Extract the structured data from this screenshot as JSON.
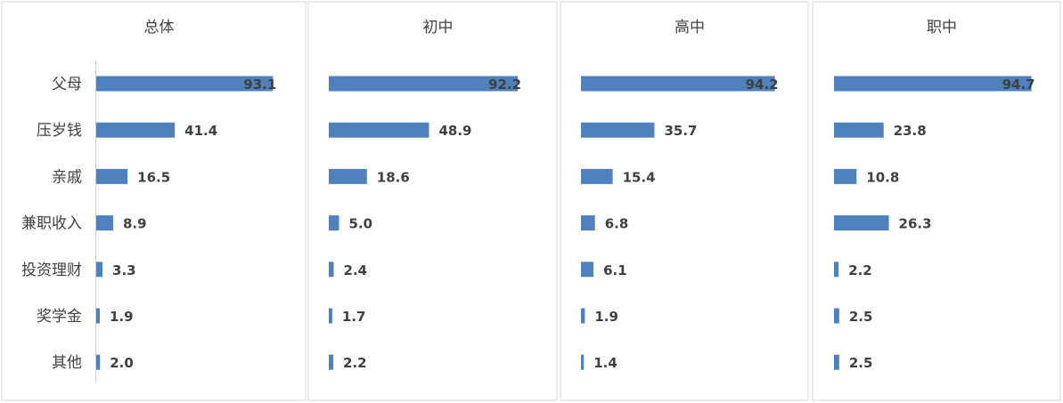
{
  "bar_color": "#4F81BD",
  "chart_data": [
    {
      "type": "bar",
      "orientation": "horizontal",
      "title": "总体",
      "categories": [
        "父母",
        "压岁钱",
        "亲戚",
        "兼职收入",
        "投资理财",
        "奖学金",
        "其他"
      ],
      "values": [
        93.1,
        41.4,
        16.5,
        8.9,
        3.3,
        1.9,
        2.0
      ],
      "value_labels": [
        "93.1",
        "41.4",
        "16.5",
        "8.9",
        "3.3",
        "1.9",
        "2.0"
      ],
      "xlim": [
        0,
        100
      ]
    },
    {
      "type": "bar",
      "orientation": "horizontal",
      "title": "初中",
      "categories": [
        "父母",
        "压岁钱",
        "亲戚",
        "兼职收入",
        "投资理财",
        "奖学金",
        "其他"
      ],
      "values": [
        92.2,
        48.9,
        18.6,
        5.0,
        2.4,
        1.7,
        2.2
      ],
      "value_labels": [
        "92.2",
        "48.9",
        "18.6",
        "5.0",
        "2.4",
        "1.7",
        "2.2"
      ],
      "xlim": [
        0,
        100
      ]
    },
    {
      "type": "bar",
      "orientation": "horizontal",
      "title": "高中",
      "categories": [
        "父母",
        "压岁钱",
        "亲戚",
        "兼职收入",
        "投资理财",
        "奖学金",
        "其他"
      ],
      "values": [
        94.2,
        35.7,
        15.4,
        6.8,
        6.1,
        1.9,
        1.4
      ],
      "value_labels": [
        "94.2",
        "35.7",
        "15.4",
        "6.8",
        "6.1",
        "1.9",
        "1.4"
      ],
      "xlim": [
        0,
        100
      ]
    },
    {
      "type": "bar",
      "orientation": "horizontal",
      "title": "职中",
      "categories": [
        "父母",
        "压岁钱",
        "亲戚",
        "兼职收入",
        "投资理财",
        "奖学金",
        "其他"
      ],
      "values": [
        94.7,
        23.8,
        10.8,
        26.3,
        2.2,
        2.5,
        2.5
      ],
      "value_labels": [
        "94.7",
        "23.8",
        "10.8",
        "26.3",
        "2.2",
        "2.5",
        "2.5"
      ],
      "xlim": [
        0,
        100
      ]
    }
  ]
}
